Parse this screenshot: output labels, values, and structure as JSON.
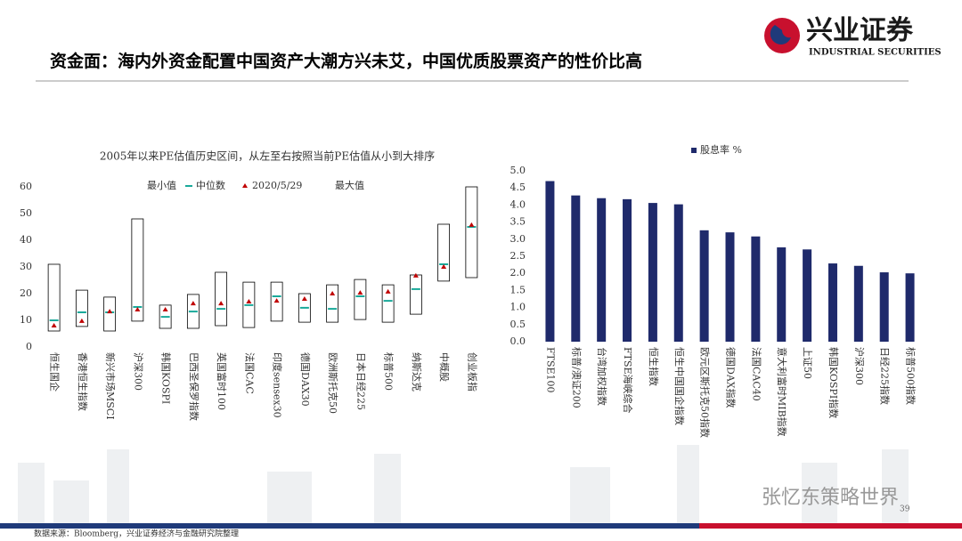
{
  "header": {
    "title": "资金面：海内外资金配置中国资产大潮方兴未艾，中国优质股票资产的性价比高",
    "logo_cn": "兴业证券",
    "logo_en": "INDUSTRIAL SECURITIES"
  },
  "chart_data": [
    {
      "type": "box",
      "title": "2005年以来PE估值历史区间，从左至右按照当前PE估值从小到大排序",
      "categories": [
        "恒生国企",
        "香港恒生指数",
        "新兴市场MSCI",
        "沪深300",
        "韩国KOSPI",
        "巴西圣保罗指数",
        "英国富时100",
        "法国CAC",
        "印度sensex30",
        "德国DAX30",
        "欧洲斯托克50",
        "日本日经225",
        "标普500",
        "纳斯达克",
        "中概股",
        "创业板指"
      ],
      "series": [
        {
          "name": "最小值",
          "color": "#000000",
          "values": [
            6,
            7.7,
            6,
            9.7,
            7,
            7,
            8,
            7.3,
            9.7,
            9.3,
            9.3,
            10.3,
            9.3,
            12.3,
            24.7,
            26
          ]
        },
        {
          "name": "中位数",
          "color": "#1aa99a",
          "values": [
            10,
            13,
            13,
            15,
            11.3,
            13.3,
            14.3,
            15.7,
            19,
            14.7,
            14.3,
            19,
            17.3,
            21.7,
            31,
            45
          ]
        },
        {
          "name": "2020/5/29",
          "color": "#c00000",
          "values": [
            8,
            9.7,
            13.3,
            14,
            14,
            16.3,
            16.3,
            17,
            17.3,
            18,
            20,
            20.3,
            20.7,
            26.7,
            30,
            45.7
          ]
        },
        {
          "name": "最大值",
          "color": "#000000",
          "values": [
            31,
            21.3,
            18.7,
            48,
            15.7,
            19.7,
            28,
            24.3,
            24.3,
            20,
            23.3,
            25.3,
            23.3,
            27,
            46,
            60
          ]
        }
      ],
      "ylim": [
        0,
        60
      ],
      "yticks": [
        0,
        10,
        20,
        30,
        40,
        50,
        60
      ],
      "grid": false
    },
    {
      "type": "bar",
      "categories": [
        "FTSE100",
        "标普/澳证200",
        "台湾加权指数",
        "FTSE海峡综合",
        "恒生指数",
        "恒生中国国企指数",
        "欧元区斯托克50指数",
        "德国DAX指数",
        "法国CAC40",
        "意大利富时MIB指数",
        "上证50",
        "韩国KOSPI指数",
        "沪深300",
        "日经225指数",
        "标普500指数"
      ],
      "series": [
        {
          "name": "股息率 %",
          "color": "#1f2a6b",
          "values": [
            4.7,
            4.28,
            4.2,
            4.17,
            4.06,
            4.02,
            3.26,
            3.2,
            3.08,
            2.76,
            2.7,
            2.29,
            2.22,
            2.03,
            2.0
          ]
        }
      ],
      "ylim": [
        0,
        5
      ],
      "yticks": [
        {
          "value": 0,
          "label": "0.0"
        },
        {
          "value": 0.5,
          "label": "0.5"
        },
        {
          "value": 1,
          "label": "1.0"
        },
        {
          "value": 1.5,
          "label": "1.5"
        },
        {
          "value": 2,
          "label": "2.0"
        },
        {
          "value": 2.5,
          "label": "2.5"
        },
        {
          "value": 3,
          "label": "3.0"
        },
        {
          "value": 3.5,
          "label": "3.5"
        },
        {
          "value": 4,
          "label": "4.0"
        },
        {
          "value": 4.5,
          "label": "4.5"
        },
        {
          "value": 5,
          "label": "5.0"
        }
      ],
      "grid": false
    }
  ],
  "footer": {
    "source": "数据来源：Bloomberg，兴业证券经济与金融研究院整理",
    "page": "39",
    "watermark": "张忆东策略世界"
  }
}
